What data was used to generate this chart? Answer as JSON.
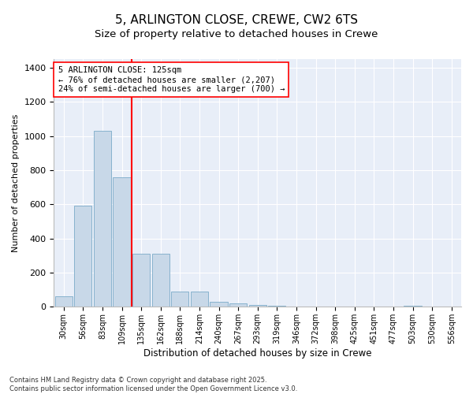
{
  "title1": "5, ARLINGTON CLOSE, CREWE, CW2 6TS",
  "title2": "Size of property relative to detached houses in Crewe",
  "xlabel": "Distribution of detached houses by size in Crewe",
  "ylabel": "Number of detached properties",
  "annotation_title": "5 ARLINGTON CLOSE: 125sqm",
  "annotation_line1": "← 76% of detached houses are smaller (2,207)",
  "annotation_line2": "24% of semi-detached houses are larger (700) →",
  "footer1": "Contains HM Land Registry data © Crown copyright and database right 2025.",
  "footer2": "Contains public sector information licensed under the Open Government Licence v3.0.",
  "categories": [
    "30sqm",
    "56sqm",
    "83sqm",
    "109sqm",
    "135sqm",
    "162sqm",
    "188sqm",
    "214sqm",
    "240sqm",
    "267sqm",
    "293sqm",
    "319sqm",
    "346sqm",
    "372sqm",
    "398sqm",
    "425sqm",
    "451sqm",
    "477sqm",
    "503sqm",
    "530sqm",
    "556sqm"
  ],
  "values": [
    60,
    590,
    1030,
    760,
    310,
    310,
    90,
    90,
    30,
    20,
    10,
    5,
    0,
    0,
    0,
    0,
    0,
    0,
    5,
    0,
    0
  ],
  "bar_color": "#c8d8e8",
  "bar_edge_color": "#7aaac8",
  "vline_x": 3.5,
  "vline_color": "red",
  "ylim": [
    0,
    1450
  ],
  "yticks": [
    0,
    200,
    400,
    600,
    800,
    1000,
    1200,
    1400
  ],
  "plot_background": "#e8eef8",
  "title_fontsize": 11,
  "subtitle_fontsize": 9.5
}
